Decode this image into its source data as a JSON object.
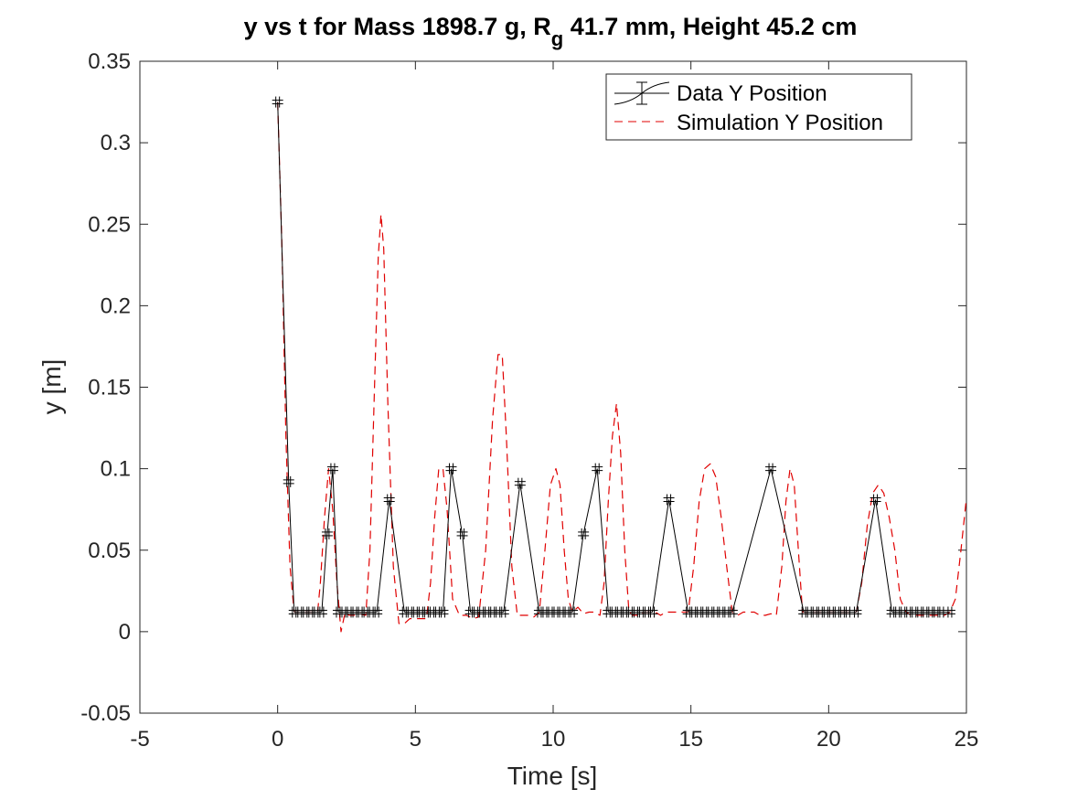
{
  "chart_data": {
    "type": "line",
    "title_parts": {
      "before_sub": "y vs t for Mass 1898.7 g, R",
      "subscript": "g",
      "after_sub": " 41.7 mm,  Height 45.2 cm"
    },
    "xlabel": "Time [s]",
    "ylabel": "y [m]",
    "xlim": [
      -5,
      25
    ],
    "ylim": [
      -0.05,
      0.35
    ],
    "xticks": [
      -5,
      0,
      5,
      10,
      15,
      20,
      25
    ],
    "yticks": [
      -0.05,
      0,
      0.05,
      0.1,
      0.15,
      0.2,
      0.25,
      0.3,
      0.35
    ],
    "grid": false,
    "legend_position": "top-right",
    "series": [
      {
        "name": "Data Y Position",
        "style": "solid-with-errorbars",
        "color": "#000000",
        "marker": "+",
        "x": [
          0.0,
          0.4,
          0.6,
          0.8,
          1.0,
          1.2,
          1.4,
          1.6,
          1.8,
          2.0,
          2.2,
          2.4,
          2.6,
          2.8,
          3.0,
          3.2,
          3.4,
          3.6,
          4.05,
          4.6,
          4.8,
          5.0,
          5.2,
          5.4,
          5.6,
          5.8,
          6.0,
          6.3,
          6.7,
          7.0,
          7.2,
          7.4,
          7.6,
          7.8,
          8.0,
          8.2,
          8.8,
          9.5,
          9.7,
          9.9,
          10.1,
          10.3,
          10.5,
          10.7,
          11.1,
          11.6,
          12.0,
          12.2,
          12.4,
          12.6,
          12.8,
          13.0,
          13.2,
          13.4,
          13.6,
          14.2,
          14.9,
          15.1,
          15.3,
          15.5,
          15.7,
          15.9,
          16.1,
          16.3,
          16.5,
          17.9,
          19.1,
          19.3,
          19.5,
          19.7,
          19.9,
          20.1,
          20.3,
          20.5,
          20.7,
          21.0,
          21.7,
          22.3,
          22.5,
          22.7,
          22.9,
          23.1,
          23.3,
          23.5,
          23.7,
          23.9,
          24.1,
          24.4
        ],
        "y": [
          0.325,
          0.092,
          0.012,
          0.012,
          0.012,
          0.012,
          0.012,
          0.012,
          0.06,
          0.1,
          0.012,
          0.012,
          0.012,
          0.012,
          0.012,
          0.012,
          0.012,
          0.012,
          0.081,
          0.012,
          0.012,
          0.012,
          0.012,
          0.012,
          0.012,
          0.012,
          0.012,
          0.1,
          0.06,
          0.012,
          0.012,
          0.012,
          0.012,
          0.012,
          0.012,
          0.012,
          0.091,
          0.012,
          0.012,
          0.012,
          0.012,
          0.012,
          0.012,
          0.012,
          0.06,
          0.1,
          0.012,
          0.012,
          0.012,
          0.012,
          0.012,
          0.012,
          0.012,
          0.012,
          0.012,
          0.081,
          0.012,
          0.012,
          0.012,
          0.012,
          0.012,
          0.012,
          0.012,
          0.012,
          0.012,
          0.1,
          0.012,
          0.012,
          0.012,
          0.012,
          0.012,
          0.012,
          0.012,
          0.012,
          0.012,
          0.012,
          0.081,
          0.012,
          0.012,
          0.012,
          0.012,
          0.012,
          0.012,
          0.012,
          0.012,
          0.012,
          0.012,
          0.012
        ]
      },
      {
        "name": "Simulation Y Position",
        "style": "dashed",
        "color": "#e00000",
        "x": [
          0.0,
          0.15,
          0.3,
          0.45,
          0.6,
          0.75,
          0.95,
          1.15,
          1.3,
          1.45,
          1.55,
          1.7,
          1.85,
          2.0,
          2.15,
          2.3,
          2.45,
          2.6,
          2.8,
          3.0,
          3.2,
          3.35,
          3.5,
          3.65,
          3.75,
          3.85,
          4.0,
          4.2,
          4.4,
          4.6,
          4.8,
          5.0,
          5.2,
          5.4,
          5.55,
          5.7,
          5.85,
          6.0,
          6.15,
          6.35,
          6.6,
          6.85,
          7.1,
          7.3,
          7.55,
          7.8,
          8.0,
          8.15,
          8.3,
          8.5,
          8.7,
          8.9,
          9.1,
          9.3,
          9.5,
          9.7,
          9.9,
          10.1,
          10.25,
          10.4,
          10.55,
          10.7,
          10.9,
          11.1,
          11.3,
          11.5,
          11.7,
          11.85,
          12.0,
          12.15,
          12.3,
          12.45,
          12.6,
          12.75,
          12.9,
          13.1,
          13.3,
          13.5,
          13.7,
          13.9,
          14.1,
          14.3,
          14.5,
          14.7,
          14.9,
          15.1,
          15.3,
          15.5,
          15.7,
          15.9,
          16.1,
          16.3,
          16.5,
          16.7,
          16.9,
          17.1,
          17.3,
          17.5,
          17.7,
          17.9,
          18.1,
          18.3,
          18.45,
          18.6,
          18.75,
          18.9,
          19.05,
          19.2,
          19.4,
          19.6,
          19.8,
          20.0,
          20.2,
          20.4,
          20.6,
          20.8,
          21.0,
          21.2,
          21.4,
          21.6,
          21.8,
          22.0,
          22.2,
          22.4,
          22.6,
          22.8,
          23.0,
          23.2,
          23.4,
          23.6,
          23.8,
          24.0,
          24.2,
          24.4,
          24.6,
          24.8,
          25.0
        ],
        "y": [
          0.325,
          0.24,
          0.12,
          0.04,
          0.012,
          0.012,
          0.012,
          0.012,
          0.012,
          0.012,
          0.03,
          0.07,
          0.1,
          0.075,
          0.03,
          0.0,
          0.012,
          0.01,
          0.01,
          0.011,
          0.01,
          0.05,
          0.14,
          0.23,
          0.256,
          0.235,
          0.14,
          0.04,
          0.005,
          0.005,
          0.008,
          0.008,
          0.008,
          0.008,
          0.03,
          0.07,
          0.1,
          0.1,
          0.075,
          0.02,
          0.01,
          0.01,
          0.008,
          0.009,
          0.05,
          0.13,
          0.17,
          0.17,
          0.12,
          0.04,
          0.01,
          0.01,
          0.01,
          0.009,
          0.012,
          0.05,
          0.09,
          0.1,
          0.09,
          0.05,
          0.02,
          0.012,
          0.015,
          0.011,
          0.012,
          0.012,
          0.01,
          0.03,
          0.08,
          0.12,
          0.14,
          0.11,
          0.05,
          0.012,
          0.01,
          0.01,
          0.012,
          0.012,
          0.012,
          0.01,
          0.012,
          0.012,
          0.012,
          0.012,
          0.012,
          0.04,
          0.08,
          0.1,
          0.103,
          0.095,
          0.07,
          0.04,
          0.012,
          0.01,
          0.012,
          0.012,
          0.012,
          0.01,
          0.01,
          0.011,
          0.01,
          0.04,
          0.08,
          0.1,
          0.09,
          0.05,
          0.012,
          0.012,
          0.012,
          0.012,
          0.012,
          0.012,
          0.012,
          0.012,
          0.012,
          0.012,
          0.012,
          0.03,
          0.065,
          0.085,
          0.09,
          0.085,
          0.07,
          0.05,
          0.02,
          0.012,
          0.01,
          0.01,
          0.01,
          0.01,
          0.01,
          0.01,
          0.01,
          0.012,
          0.02,
          0.05,
          0.082
        ]
      }
    ]
  }
}
